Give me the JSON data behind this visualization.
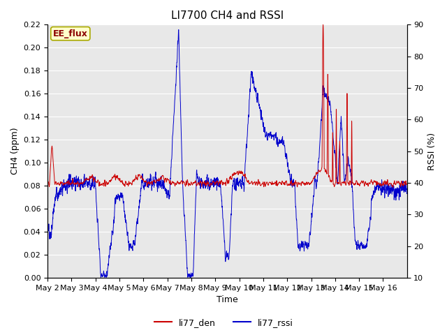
{
  "title": "LI7700 CH4 and RSSI",
  "xlabel": "Time",
  "ylabel_left": "CH4 (ppm)",
  "ylabel_right": "RSSI (%)",
  "annotation": "EE_flux",
  "ylim_left": [
    0.0,
    0.22
  ],
  "ylim_right": [
    10,
    90
  ],
  "yticks_left": [
    0.0,
    0.02,
    0.04,
    0.06,
    0.08,
    0.1,
    0.12,
    0.14,
    0.16,
    0.18,
    0.2,
    0.22
  ],
  "yticks_right": [
    10,
    20,
    30,
    40,
    50,
    60,
    70,
    80,
    90
  ],
  "color_ch4": "#cc0000",
  "color_rssi": "#0000cc",
  "legend_labels": [
    "li77_den",
    "li77_rssi"
  ],
  "bg_color": "#e8e8e8",
  "n_points": 3000,
  "title_fontsize": 11,
  "label_fontsize": 9,
  "tick_fontsize": 8,
  "legend_fontsize": 9
}
